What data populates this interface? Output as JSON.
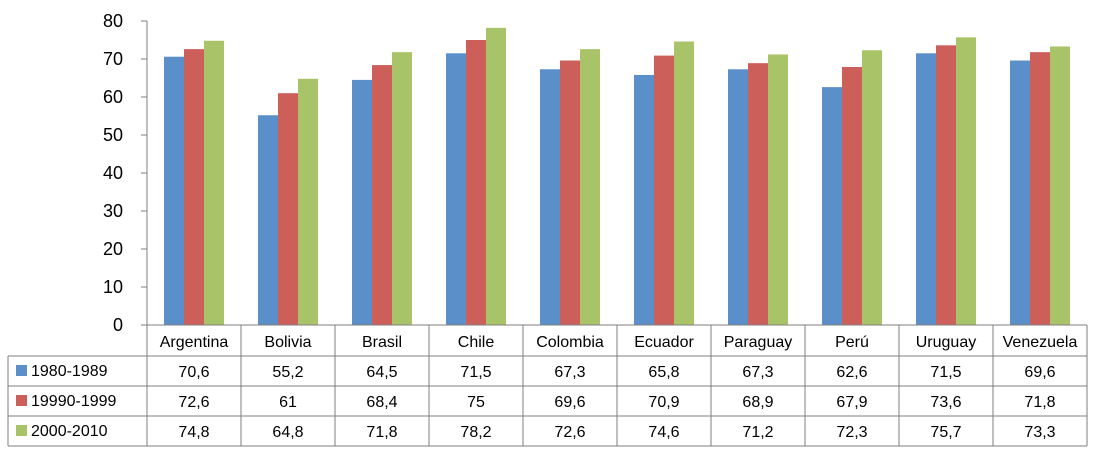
{
  "chart_data": {
    "type": "bar",
    "title": "",
    "xlabel": "",
    "ylabel": "",
    "ylim": [
      0,
      80
    ],
    "yticks": [
      "0",
      "10",
      "20",
      "30",
      "40",
      "50",
      "60",
      "70",
      "80"
    ],
    "grid": false,
    "legend": "left data table",
    "categories": [
      "Argentina",
      "Bolivia",
      "Brasil",
      "Chile",
      "Colombia",
      "Ecuador",
      "Paraguay",
      "Perú",
      "Uruguay",
      "Venezuela"
    ],
    "series": [
      {
        "name": "1980-1989",
        "color": "#5b8fc9",
        "values": [
          70.6,
          55.2,
          64.5,
          71.5,
          67.3,
          65.8,
          67.3,
          62.6,
          71.5,
          69.6
        ],
        "labels": [
          "70,6",
          "55,2",
          "64,5",
          "71,5",
          "67,3",
          "65,8",
          "67,3",
          "62,6",
          "71,5",
          "69,6"
        ]
      },
      {
        "name": "19990-1999",
        "color": "#cd5f5b",
        "values": [
          72.6,
          61,
          68.4,
          75,
          69.6,
          70.9,
          68.9,
          67.9,
          73.6,
          71.8
        ],
        "labels": [
          "72,6",
          "61",
          "68,4",
          "75",
          "69,6",
          "70,9",
          "68,9",
          "67,9",
          "73,6",
          "71,8"
        ]
      },
      {
        "name": "2000-2010",
        "color": "#a9c468",
        "values": [
          74.8,
          64.8,
          71.8,
          78.2,
          72.6,
          74.6,
          71.2,
          72.3,
          75.7,
          73.3
        ],
        "labels": [
          "74,8",
          "64,8",
          "71,8",
          "78,2",
          "72,6",
          "74,6",
          "71,2",
          "72,3",
          "75,7",
          "73,3"
        ]
      }
    ]
  }
}
